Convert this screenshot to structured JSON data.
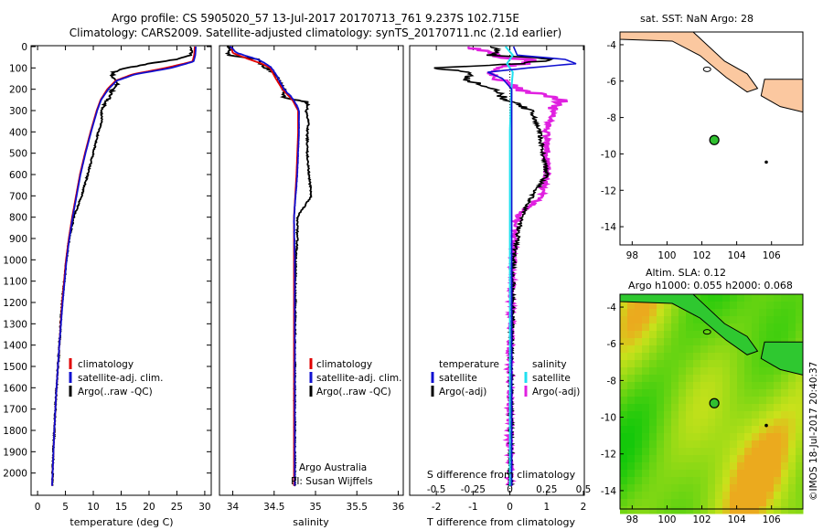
{
  "header": {
    "line1": "Argo profile: CS 5905020_57 13-Jul-2017 20170713_761 9.237S 102.715E",
    "line2": "Climatology: CARS2009. Satellite-adjusted climatology: synTS_20170711.nc (2.1d earlier)"
  },
  "colors": {
    "climatology": "#e00000",
    "satellite": "#1010d0",
    "argo": "#000000",
    "sat_salinity": "#20e0f0",
    "argo_salinity": "#e020e0",
    "land": "#fbc8a0"
  },
  "chart_data": [
    {
      "type": "line",
      "id": "temperature",
      "xlabel": "temperature (deg C)",
      "ylabel": "",
      "ylim": [
        2100,
        0
      ],
      "xlim": [
        -1,
        31
      ],
      "xticks": [
        "0",
        "5",
        "10",
        "15",
        "20",
        "25",
        "30"
      ],
      "yticks": [
        "0",
        "100",
        "200",
        "300",
        "400",
        "500",
        "600",
        "700",
        "800",
        "900",
        "1000",
        "1100",
        "1200",
        "1300",
        "1400",
        "1500",
        "1600",
        "1700",
        "1800",
        "1900",
        "2000"
      ],
      "legend": [
        "climatology",
        "satellite-adj. clim.",
        "Argo(..raw -QC)"
      ],
      "series": [
        {
          "name": "climatology",
          "depth": [
            0,
            40,
            70,
            100,
            130,
            160,
            200,
            250,
            300,
            400,
            500,
            600,
            700,
            800,
            900,
            1000,
            1200,
            1400,
            1600,
            1800,
            2000,
            2060
          ],
          "values": [
            28.2,
            28.1,
            27.8,
            23,
            17,
            14,
            12.5,
            11.3,
            10.6,
            9.5,
            8.5,
            7.6,
            6.9,
            6.2,
            5.6,
            5.1,
            4.4,
            3.9,
            3.4,
            3.0,
            2.7,
            2.6
          ]
        },
        {
          "name": "satellite-adj. clim.",
          "depth": [
            0,
            40,
            70,
            100,
            130,
            160,
            200,
            250,
            300,
            400,
            500,
            600,
            700,
            800,
            900,
            1000,
            1200,
            1400,
            1600,
            1800,
            2000,
            2060
          ],
          "values": [
            28.4,
            28.3,
            28.0,
            24,
            17.5,
            14.2,
            12.7,
            11.4,
            10.7,
            9.6,
            8.6,
            7.7,
            7.0,
            6.3,
            5.7,
            5.2,
            4.5,
            3.9,
            3.4,
            3.0,
            2.7,
            2.6
          ]
        },
        {
          "name": "Argo(..raw -QC)",
          "depth": [
            0,
            40,
            60,
            80,
            100,
            120,
            140,
            170,
            200,
            250,
            300,
            350,
            400,
            500,
            600,
            700,
            800,
            900,
            1000,
            1200,
            1400,
            1600,
            1800,
            2000,
            2060
          ],
          "values": [
            27.6,
            27.4,
            25,
            20,
            16,
            13.5,
            13.5,
            14.5,
            13.5,
            12.6,
            11.4,
            11.6,
            10.9,
            10.0,
            9.0,
            7.9,
            6.5,
            5.7,
            5.2,
            4.4,
            3.9,
            3.4,
            3.0,
            2.7,
            2.6
          ]
        }
      ]
    },
    {
      "type": "line",
      "id": "salinity",
      "xlabel": "salinity",
      "ylim": [
        2100,
        0
      ],
      "xlim": [
        33.85,
        36.05
      ],
      "xticks": [
        "34",
        "34.5",
        "35",
        "35.5",
        "36"
      ],
      "legend": [
        "climatology",
        "satellite-adj. clim.",
        "Argo(..raw -QC)"
      ],
      "series": [
        {
          "name": "climatology",
          "depth": [
            0,
            30,
            60,
            80,
            100,
            150,
            200,
            250,
            300,
            400,
            600,
            800,
            1000,
            1500,
            2000,
            2060
          ],
          "values": [
            33.98,
            34.0,
            34.2,
            34.35,
            34.45,
            34.52,
            34.6,
            34.72,
            34.79,
            34.79,
            34.77,
            34.74,
            34.74,
            34.74,
            34.74,
            34.74
          ]
        },
        {
          "name": "satellite-adj. clim.",
          "depth": [
            0,
            30,
            60,
            80,
            100,
            150,
            200,
            250,
            300,
            400,
            600,
            800,
            1000,
            1500,
            2000,
            2060
          ],
          "values": [
            33.97,
            34.05,
            34.3,
            34.4,
            34.47,
            34.55,
            34.62,
            34.74,
            34.8,
            34.8,
            34.78,
            34.74,
            34.75,
            34.75,
            34.75,
            34.75
          ]
        },
        {
          "name": "Argo(..raw -QC)",
          "depth": [
            0,
            40,
            60,
            80,
            100,
            130,
            200,
            240,
            260,
            300,
            350,
            400,
            500,
            600,
            700,
            800,
            900,
            1000,
            1500,
            2000,
            2060
          ],
          "values": [
            33.95,
            33.95,
            34.3,
            34.33,
            34.4,
            34.52,
            34.62,
            34.62,
            34.9,
            34.88,
            34.92,
            34.9,
            34.9,
            34.92,
            34.95,
            34.78,
            34.78,
            34.76,
            34.75,
            34.75,
            34.75
          ]
        }
      ]
    },
    {
      "type": "line",
      "id": "differences",
      "xlabel": "T difference from climatology",
      "xlabel_top": "S difference from climatology",
      "ylim": [
        2100,
        0
      ],
      "xlim": [
        -2.7,
        2.0
      ],
      "xticks": [
        "-2",
        "-1",
        "0",
        "1",
        "2"
      ],
      "xticks_top": [
        "-0.5",
        "-0.25",
        "0",
        "0.25",
        "0.5"
      ],
      "legend_headers": [
        "temperature",
        "salinity"
      ],
      "legend": [
        "satellite",
        "Argo(-adj)",
        "satellite",
        "Argo(-adj)"
      ],
      "series": [
        {
          "name": "temperature satellite",
          "depth": [
            0,
            40,
            60,
            80,
            100,
            120,
            150,
            200,
            300,
            500,
            1000,
            2060
          ],
          "values": [
            0.1,
            0.2,
            1.5,
            1.8,
            0.5,
            -0.6,
            -0.2,
            0.05,
            0.05,
            0.05,
            0.05,
            0.05
          ]
        },
        {
          "name": "temperature Argo(-adj)",
          "depth": [
            0,
            40,
            50,
            60,
            80,
            100,
            120,
            150,
            200,
            250,
            300,
            400,
            500,
            600,
            700,
            800,
            1000,
            1500,
            2060
          ],
          "values": [
            -0.4,
            -0.5,
            0.5,
            1.2,
            0.3,
            -2.1,
            -1.0,
            -1.2,
            -0.5,
            -0.1,
            0.6,
            0.8,
            0.9,
            1.0,
            0.6,
            0.3,
            0.1,
            0.03,
            0.02
          ]
        },
        {
          "name": "salinity satellite",
          "depth": [
            0,
            40,
            80,
            100,
            120,
            200,
            400,
            800,
            1500,
            2060
          ],
          "values": [
            -0.03,
            0.02,
            -0.02,
            0.0,
            0.02,
            0.01,
            0.0,
            0.0,
            0.0,
            0.0
          ]
        },
        {
          "name": "salinity Argo(-adj)",
          "depth": [
            0,
            30,
            50,
            60,
            80,
            100,
            150,
            200,
            250,
            300,
            400,
            500,
            600,
            700,
            800,
            1000,
            1500,
            2060
          ],
          "values": [
            -0.25,
            -0.15,
            -0.05,
            0.15,
            0.1,
            -0.12,
            -0.1,
            0.05,
            0.35,
            0.3,
            0.25,
            0.25,
            0.25,
            0.22,
            0.05,
            0.02,
            0.0,
            0.0
          ]
        }
      ]
    },
    {
      "type": "map",
      "id": "sst-map",
      "title": "sat. SST: NaN Argo: 28",
      "xlim": [
        97.3,
        107.8
      ],
      "ylim": [
        -15,
        -3.3
      ],
      "xticks": [
        "98",
        "100",
        "102",
        "104",
        "106"
      ],
      "yticks": [
        "-4",
        "-6",
        "-8",
        "-10",
        "-12",
        "-14"
      ],
      "argo_position": {
        "lon": 102.715,
        "lat": -9.237
      }
    },
    {
      "type": "heatmap",
      "id": "sla-map",
      "title_line1": "Altim. SLA: 0.12",
      "title_line2": "Argo h1000: 0.055 h2000: 0.068",
      "xlim": [
        97.3,
        107.8
      ],
      "ylim": [
        -15,
        -3.3
      ],
      "xticks": [
        "98",
        "100",
        "102",
        "104",
        "106"
      ],
      "yticks": [
        "-4",
        "-6",
        "-8",
        "-10",
        "-12",
        "-14"
      ],
      "argo_position": {
        "lon": 102.715,
        "lat": -9.237
      }
    }
  ],
  "panel_text": {
    "credit_line1": "Argo Australia",
    "credit_line2": "PI: Susan Wijffels",
    "side_label": "©IMOS 18-Jul-2017 20:40:37"
  }
}
